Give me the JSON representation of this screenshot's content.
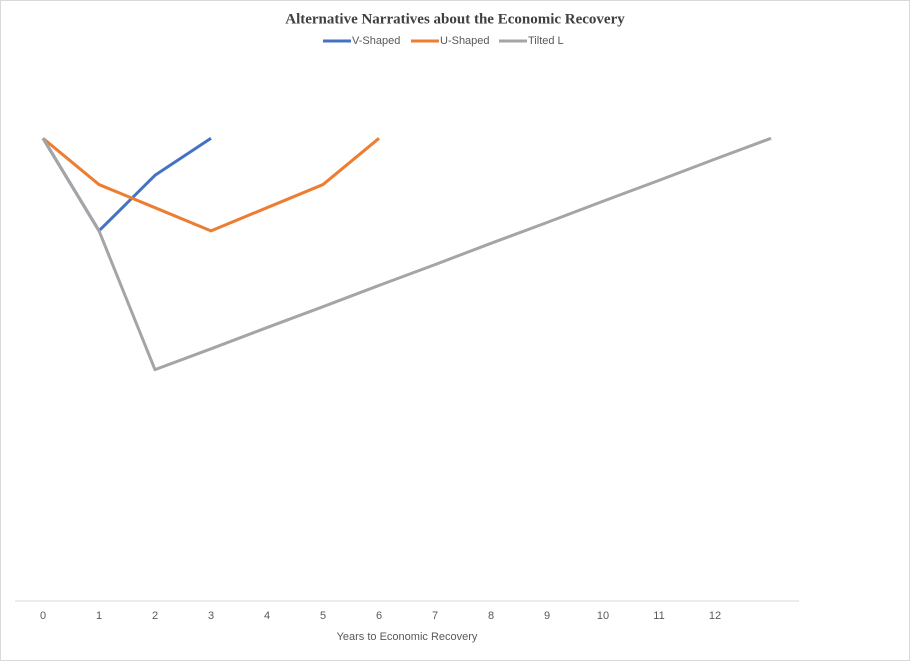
{
  "chart_data": {
    "type": "line",
    "title": "Alternative Narratives about the Economic Recovery",
    "x_label": "Years to Economic Recovery",
    "categories": [
      "0",
      "1",
      "2",
      "3",
      "4",
      "5",
      "6",
      "7",
      "8",
      "9",
      "10",
      "11",
      "12",
      null
    ],
    "series": [
      {
        "name": "V-Shaped",
        "color": "#4472c4",
        "values": [
          100,
          80,
          92,
          100,
          null,
          null,
          null,
          null,
          null,
          null,
          null,
          null,
          null,
          null
        ]
      },
      {
        "name": "U-Shaped",
        "color": "#ed7d31",
        "values": [
          100,
          90,
          85,
          80,
          85,
          90,
          100,
          null,
          null,
          null,
          null,
          null,
          null,
          null
        ]
      },
      {
        "name": "Tilted L",
        "color": "#a5a5a5",
        "values": [
          100,
          80,
          50,
          54.5,
          59.1,
          63.6,
          68.2,
          72.7,
          77.3,
          81.8,
          86.4,
          90.9,
          95.5,
          100
        ]
      }
    ],
    "ylim": [
      0,
      118
    ],
    "legend": "top"
  }
}
